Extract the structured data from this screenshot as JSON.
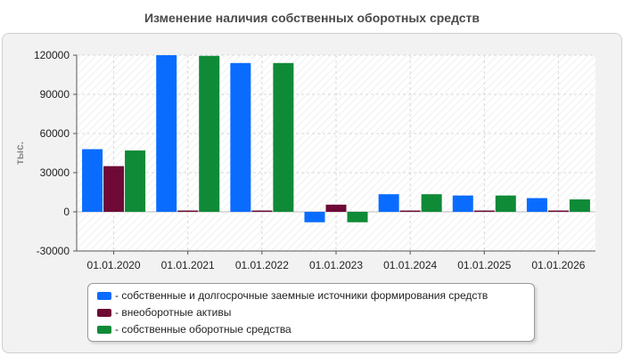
{
  "chart_data": {
    "type": "bar",
    "title": "Изменение наличия собственных оборотных средств",
    "ylabel": "тыс.",
    "xlabel": "",
    "ylim": [
      -30000,
      120000
    ],
    "yticks": [
      120000,
      90000,
      60000,
      30000,
      0,
      -30000
    ],
    "grid": true,
    "legend_position": "bottom",
    "categories": [
      "01.01.2020",
      "01.01.2021",
      "01.01.2022",
      "01.01.2023",
      "01.01.2024",
      "01.01.2025",
      "01.01.2026"
    ],
    "series": [
      {
        "name": "- собственные и долгосрочные заемные источники формирования средств",
        "color": "#0a6cff",
        "values": [
          48000,
          120000,
          114000,
          -8000,
          13500,
          12500,
          10500
        ]
      },
      {
        "name": "- внеоборотные активы",
        "color": "#6e0a35",
        "values": [
          35000,
          1000,
          1000,
          5500,
          1000,
          1000,
          1000
        ]
      },
      {
        "name": "- собственные оборотные средства",
        "color": "#0f8a37",
        "values": [
          47000,
          119500,
          114000,
          -8000,
          13500,
          12500,
          9500
        ]
      }
    ]
  }
}
